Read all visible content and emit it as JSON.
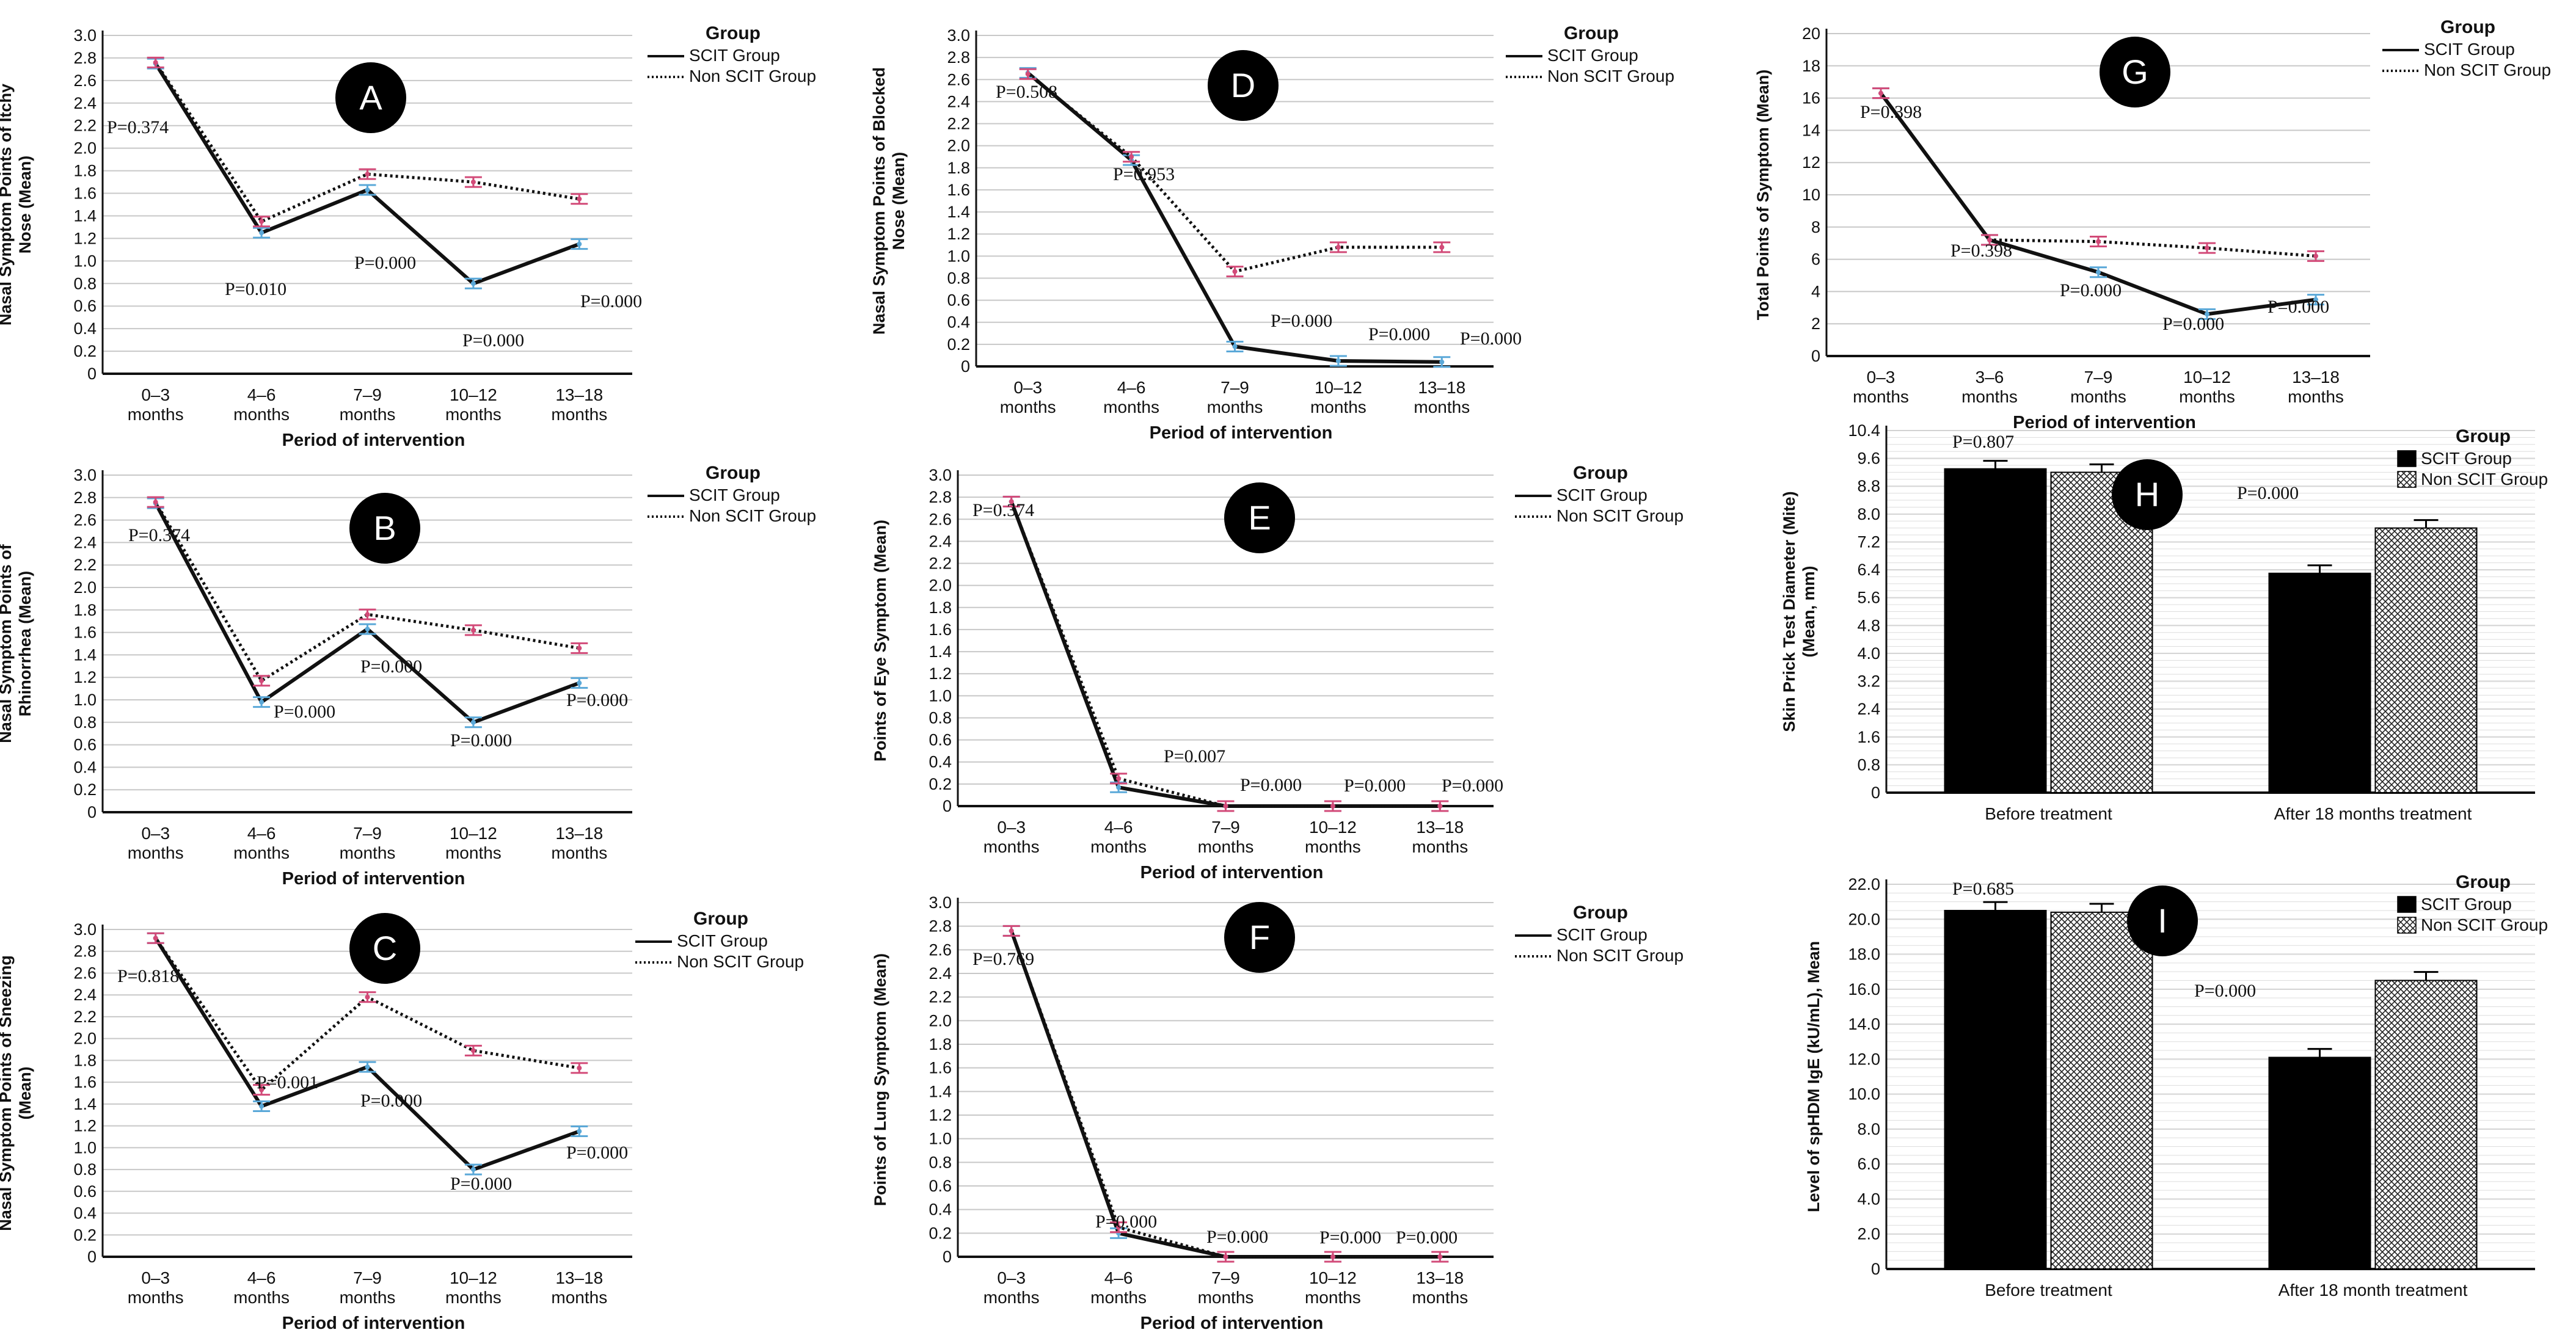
{
  "colors": {
    "scit_line": "#111111",
    "non_scit_line": "#111111",
    "scit_errorbar": "#5aa8d8",
    "non_scit_errorbar": "#d24a78",
    "grid": "#c8c8c8",
    "badge_fill": "#000000",
    "badge_text": "#ffffff"
  },
  "chart_data": [
    {
      "id": "A",
      "type": "line",
      "badge": "A",
      "ylabel": "Nasal Symptom Points of Itchy Nose (Mean)",
      "xlabel": "Period of intervention",
      "legend_title": "Group",
      "ylim": [
        0,
        3.0
      ],
      "yticks": [
        0,
        0.2,
        0.4,
        0.6,
        0.8,
        1.0,
        1.2,
        1.4,
        1.6,
        1.8,
        2.0,
        2.2,
        2.4,
        2.6,
        2.8,
        3.0
      ],
      "categories": [
        "0–3 months",
        "4–6 months",
        "7–9 months",
        "10–12 months",
        "13–18 months"
      ],
      "series": [
        {
          "name": "SCIT Group",
          "style": "solid",
          "values": [
            2.75,
            1.25,
            1.63,
            0.8,
            1.15
          ]
        },
        {
          "name": "Non SCIT Group",
          "style": "dotted",
          "values": [
            2.76,
            1.35,
            1.77,
            1.7,
            1.55
          ]
        }
      ],
      "pvalues": [
        "P=0.374",
        "P=0.010",
        "P=0.000",
        "P=0.000",
        "P=0.000"
      ]
    },
    {
      "id": "B",
      "type": "line",
      "badge": "B",
      "ylabel": "Nasal Symptom Points of Rhinorrhea (Mean)",
      "xlabel": "Period of intervention",
      "legend_title": "Group",
      "ylim": [
        0,
        3.0
      ],
      "yticks": [
        0,
        0.2,
        0.4,
        0.6,
        0.8,
        1.0,
        1.2,
        1.4,
        1.6,
        1.8,
        2.0,
        2.2,
        2.4,
        2.6,
        2.8,
        3.0
      ],
      "categories": [
        "0–3 months",
        "4–6 months",
        "7–9 months",
        "10–12 months",
        "13–18 months"
      ],
      "series": [
        {
          "name": "SCIT Group",
          "style": "solid",
          "values": [
            2.75,
            0.98,
            1.63,
            0.8,
            1.15
          ]
        },
        {
          "name": "Non SCIT Group",
          "style": "dotted",
          "values": [
            2.76,
            1.17,
            1.76,
            1.62,
            1.46
          ]
        }
      ],
      "pvalues": [
        "P=0.374",
        "P=0.000",
        "P=0.000",
        "P=0.000",
        "P=0.000"
      ]
    },
    {
      "id": "C",
      "type": "line",
      "badge": "C",
      "ylabel": "Nasal Symptom Points of Sneezing (Mean)",
      "xlabel": "Period of intervention",
      "legend_title": "Group",
      "ylim": [
        0,
        3.0
      ],
      "yticks": [
        0,
        0.2,
        0.4,
        0.6,
        0.8,
        1.0,
        1.2,
        1.4,
        1.6,
        1.8,
        2.0,
        2.2,
        2.4,
        2.6,
        2.8,
        3.0
      ],
      "categories": [
        "0–3 months",
        "4–6 months",
        "7–9 months",
        "10–12 months",
        "13–18 months"
      ],
      "series": [
        {
          "name": "SCIT Group",
          "style": "solid",
          "values": [
            2.92,
            1.38,
            1.74,
            0.8,
            1.15
          ]
        },
        {
          "name": "Non SCIT Group",
          "style": "dotted",
          "values": [
            2.92,
            1.53,
            2.38,
            1.89,
            1.73
          ]
        }
      ],
      "pvalues": [
        "P=0.818",
        "P=0.001",
        "P=0.000",
        "P=0.000",
        "P=0.000"
      ]
    },
    {
      "id": "D",
      "type": "line",
      "badge": "D",
      "ylabel": "Nasal Symptom Points of Blocked Nose (Mean)",
      "xlabel": "Period of intervention",
      "legend_title": "Group",
      "ylim": [
        0,
        3.0
      ],
      "yticks": [
        0,
        0.2,
        0.4,
        0.6,
        0.8,
        1.0,
        1.2,
        1.4,
        1.6,
        1.8,
        2.0,
        2.2,
        2.4,
        2.6,
        2.8,
        3.0
      ],
      "categories": [
        "0–3 months",
        "4–6 months",
        "7–9 months",
        "10–12 months",
        "13–18 months"
      ],
      "series": [
        {
          "name": "SCIT Group",
          "style": "solid",
          "values": [
            2.66,
            1.87,
            0.18,
            0.05,
            0.04
          ]
        },
        {
          "name": "Non SCIT Group",
          "style": "dotted",
          "values": [
            2.65,
            1.9,
            0.86,
            1.08,
            1.08
          ]
        }
      ],
      "pvalues": [
        "P=0.508",
        "P=0.953",
        "P=0.000",
        "P=0.000",
        "P=0.000"
      ]
    },
    {
      "id": "E",
      "type": "line",
      "badge": "E",
      "ylabel": "Points of Eye Symptom (Mean)",
      "xlabel": "Period of intervention",
      "legend_title": "Group",
      "ylim": [
        0,
        3.0
      ],
      "yticks": [
        0,
        0.2,
        0.4,
        0.6,
        0.8,
        1.0,
        1.2,
        1.4,
        1.6,
        1.8,
        2.0,
        2.2,
        2.4,
        2.6,
        2.8,
        3.0
      ],
      "categories": [
        "0–3 months",
        "4–6 months",
        "7–9 months",
        "10–12 months",
        "13–18 months"
      ],
      "series": [
        {
          "name": "SCIT Group",
          "style": "solid",
          "values": [
            2.76,
            0.17,
            0,
            0,
            0
          ]
        },
        {
          "name": "Non SCIT Group",
          "style": "dotted",
          "values": [
            2.76,
            0.25,
            0,
            0,
            0
          ]
        }
      ],
      "pvalues": [
        "P=0.374",
        "P=0.007",
        "P=0.000",
        "P=0.000",
        "P=0.000"
      ]
    },
    {
      "id": "F",
      "type": "line",
      "badge": "F",
      "ylabel": "Points of Lung Symptom (Mean)",
      "xlabel": "Period of intervention",
      "legend_title": "Group",
      "ylim": [
        0,
        3.0
      ],
      "yticks": [
        0,
        0.2,
        0.4,
        0.6,
        0.8,
        1.0,
        1.2,
        1.4,
        1.6,
        1.8,
        2.0,
        2.2,
        2.4,
        2.6,
        2.8,
        3.0
      ],
      "categories": [
        "0–3 months",
        "4–6 months",
        "7–9 months",
        "10–12 months",
        "13–18 months"
      ],
      "series": [
        {
          "name": "SCIT Group",
          "style": "solid",
          "values": [
            2.76,
            0.2,
            0,
            0,
            0
          ]
        },
        {
          "name": "Non SCIT Group",
          "style": "dotted",
          "values": [
            2.76,
            0.25,
            0,
            0,
            0
          ]
        }
      ],
      "pvalues": [
        "P=0.769",
        "P=0.000",
        "P=0.000",
        "P=0.000",
        "P=0.000"
      ]
    },
    {
      "id": "G",
      "type": "line",
      "badge": "G",
      "ylabel": "Total Points of Symptom (Mean)",
      "xlabel": "Period of intervention",
      "legend_title": "Group",
      "ylim": [
        0,
        20
      ],
      "yticks": [
        0,
        2,
        4,
        6,
        8,
        10,
        12,
        14,
        16,
        18,
        20
      ],
      "categories": [
        "0–3 months",
        "3–6 months",
        "7–9 months",
        "10–12 months",
        "13–18 months"
      ],
      "series": [
        {
          "name": "SCIT Group",
          "style": "solid",
          "values": [
            16.3,
            7.2,
            5.2,
            2.6,
            3.5
          ]
        },
        {
          "name": "Non SCIT Group",
          "style": "dotted",
          "values": [
            16.3,
            7.2,
            7.1,
            6.7,
            6.2
          ]
        }
      ],
      "pvalues": [
        "P=0.398",
        "P=0.398",
        "P=0.000",
        "P=0.000",
        "P=0.000"
      ]
    },
    {
      "id": "H",
      "type": "bar",
      "badge": "H",
      "ylabel": "Skin Prick Test Diameter (Mite) (Mean, mm)",
      "legend_title": "Group",
      "ylim": [
        0,
        10.4
      ],
      "yticks": [
        0,
        0.8,
        1.6,
        2.4,
        3.2,
        4.0,
        4.8,
        5.6,
        6.4,
        7.2,
        8.0,
        8.8,
        9.6,
        10.4
      ],
      "categories": [
        "Before treatment",
        "After 18 months treatment"
      ],
      "series": [
        {
          "name": "SCIT Group",
          "pattern": "solid",
          "values": [
            9.3,
            6.3
          ]
        },
        {
          "name": "Non SCIT Group",
          "pattern": "crosshatch",
          "values": [
            9.2,
            7.6
          ]
        }
      ],
      "pvalues": [
        "P=0.807",
        "P=0.000"
      ]
    },
    {
      "id": "I",
      "type": "bar",
      "badge": "I",
      "ylabel": "Level of spHDM IgE (kU/mL), Mean",
      "legend_title": "Group",
      "ylim": [
        0,
        22.0
      ],
      "yticks": [
        0,
        2.0,
        4.0,
        6.0,
        8.0,
        10.0,
        12.0,
        14.0,
        16.0,
        18.0,
        20.0,
        22.0
      ],
      "categories": [
        "Before treatment",
        "After 18 month treatment"
      ],
      "series": [
        {
          "name": "SCIT Group",
          "pattern": "solid",
          "values": [
            20.5,
            12.1
          ]
        },
        {
          "name": "Non SCIT Group",
          "pattern": "crosshatch",
          "values": [
            20.4,
            16.5
          ]
        }
      ],
      "pvalues": [
        "P=0.685",
        "P=0.000"
      ]
    }
  ]
}
